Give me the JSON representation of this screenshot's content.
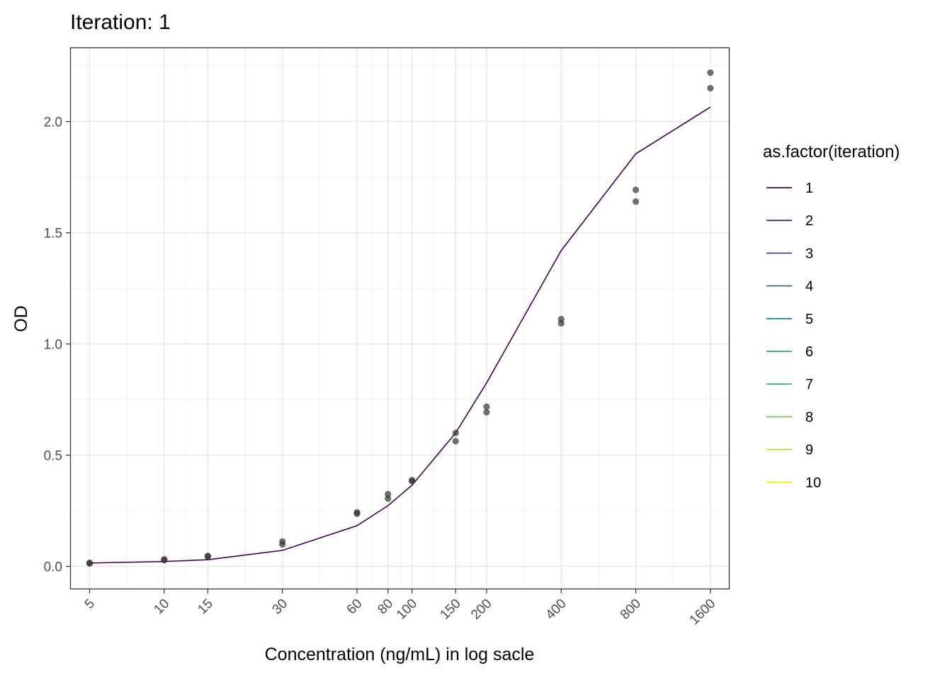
{
  "chart_data": {
    "type": "scatter",
    "title": "Iteration: 1",
    "xlabel": "Concentration (ng/mL) in log sacle",
    "ylabel": "OD",
    "x_scale": "log",
    "xlim": [
      4.2,
      1900
    ],
    "ylim": [
      -0.1,
      2.33
    ],
    "x_ticks": [
      5,
      10,
      15,
      30,
      60,
      80,
      100,
      150,
      200,
      400,
      800,
      1600
    ],
    "x_tick_labels": [
      "5",
      "10",
      "15",
      "30",
      "60",
      "80",
      "100",
      "150",
      "200",
      "400",
      "800",
      "1600"
    ],
    "y_ticks": [
      0.0,
      0.5,
      1.0,
      1.5,
      2.0
    ],
    "y_tick_labels": [
      "0.0",
      "0.5",
      "1.0",
      "1.5",
      "2.0"
    ],
    "grid": true,
    "legend": {
      "title": "as.factor(iteration)",
      "position": "right",
      "items": [
        {
          "label": "1",
          "color": "#440154"
        },
        {
          "label": "2",
          "color": "#482878"
        },
        {
          "label": "3",
          "color": "#3E4A89"
        },
        {
          "label": "4",
          "color": "#31688E"
        },
        {
          "label": "5",
          "color": "#26828E"
        },
        {
          "label": "6",
          "color": "#1F9E89"
        },
        {
          "label": "7",
          "color": "#35B779"
        },
        {
          "label": "8",
          "color": "#6DCD59"
        },
        {
          "label": "9",
          "color": "#B4DE2C"
        },
        {
          "label": "10",
          "color": "#FDE725"
        }
      ]
    },
    "points": {
      "color": "#333333",
      "x": [
        5,
        5,
        10,
        10,
        15,
        15,
        30,
        30,
        60,
        60,
        80,
        80,
        100,
        100,
        150,
        150,
        200,
        200,
        400,
        400,
        800,
        800,
        1600,
        1600
      ],
      "y": [
        0.013,
        0.016,
        0.028,
        0.032,
        0.044,
        0.047,
        0.099,
        0.112,
        0.237,
        0.243,
        0.305,
        0.325,
        0.383,
        0.388,
        0.563,
        0.6,
        0.693,
        0.718,
        1.093,
        1.112,
        1.64,
        1.693,
        2.15,
        2.22
      ]
    },
    "series": [
      {
        "type": "line",
        "name": "1",
        "color": "#440154",
        "x": [
          5,
          10,
          15,
          30,
          60,
          80,
          100,
          150,
          200,
          400,
          800,
          1600
        ],
        "y": [
          0.015,
          0.022,
          0.03,
          0.072,
          0.183,
          0.273,
          0.365,
          0.6,
          0.825,
          1.42,
          1.855,
          2.065
        ]
      }
    ]
  }
}
